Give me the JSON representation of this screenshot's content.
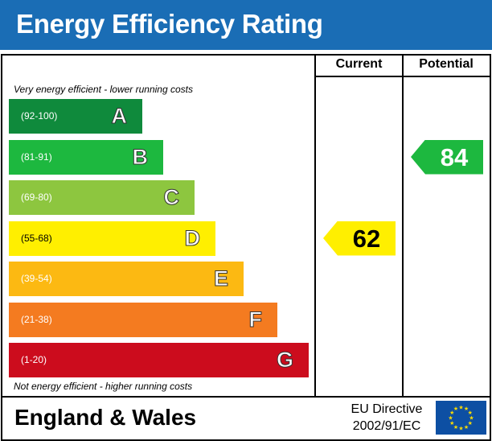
{
  "header": {
    "title": "Energy Efficiency Rating",
    "background": "#1a6db5"
  },
  "columns": {
    "current_label": "Current",
    "potential_label": "Potential"
  },
  "notes": {
    "top": "Very energy efficient - lower running costs",
    "bottom": "Not energy efficient - higher running costs"
  },
  "chart_data": {
    "type": "bar",
    "title": "Energy Efficiency Rating",
    "categories": [
      "A",
      "B",
      "C",
      "D",
      "E",
      "F",
      "G"
    ],
    "bands": [
      {
        "letter": "A",
        "range": "(92-100)",
        "color": "#0f8a3c"
      },
      {
        "letter": "B",
        "range": "(81-91)",
        "color": "#1db83f"
      },
      {
        "letter": "C",
        "range": "(69-80)",
        "color": "#8dc63f"
      },
      {
        "letter": "D",
        "range": "(55-68)",
        "color": "#ffef00"
      },
      {
        "letter": "E",
        "range": "(39-54)",
        "color": "#fcb912"
      },
      {
        "letter": "F",
        "range": "(21-38)",
        "color": "#f47b20"
      },
      {
        "letter": "G",
        "range": "(1-20)",
        "color": "#cc0c1d"
      }
    ],
    "current": {
      "value": 62,
      "band": "D",
      "color": "#ffef00"
    },
    "potential": {
      "value": 84,
      "band": "B",
      "color": "#1db83f"
    }
  },
  "footer": {
    "region": "England & Wales",
    "directive_line1": "EU Directive",
    "directive_line2": "2002/91/EC",
    "flag_color": "#0d4fa3",
    "star_color": "#ffdd00"
  }
}
